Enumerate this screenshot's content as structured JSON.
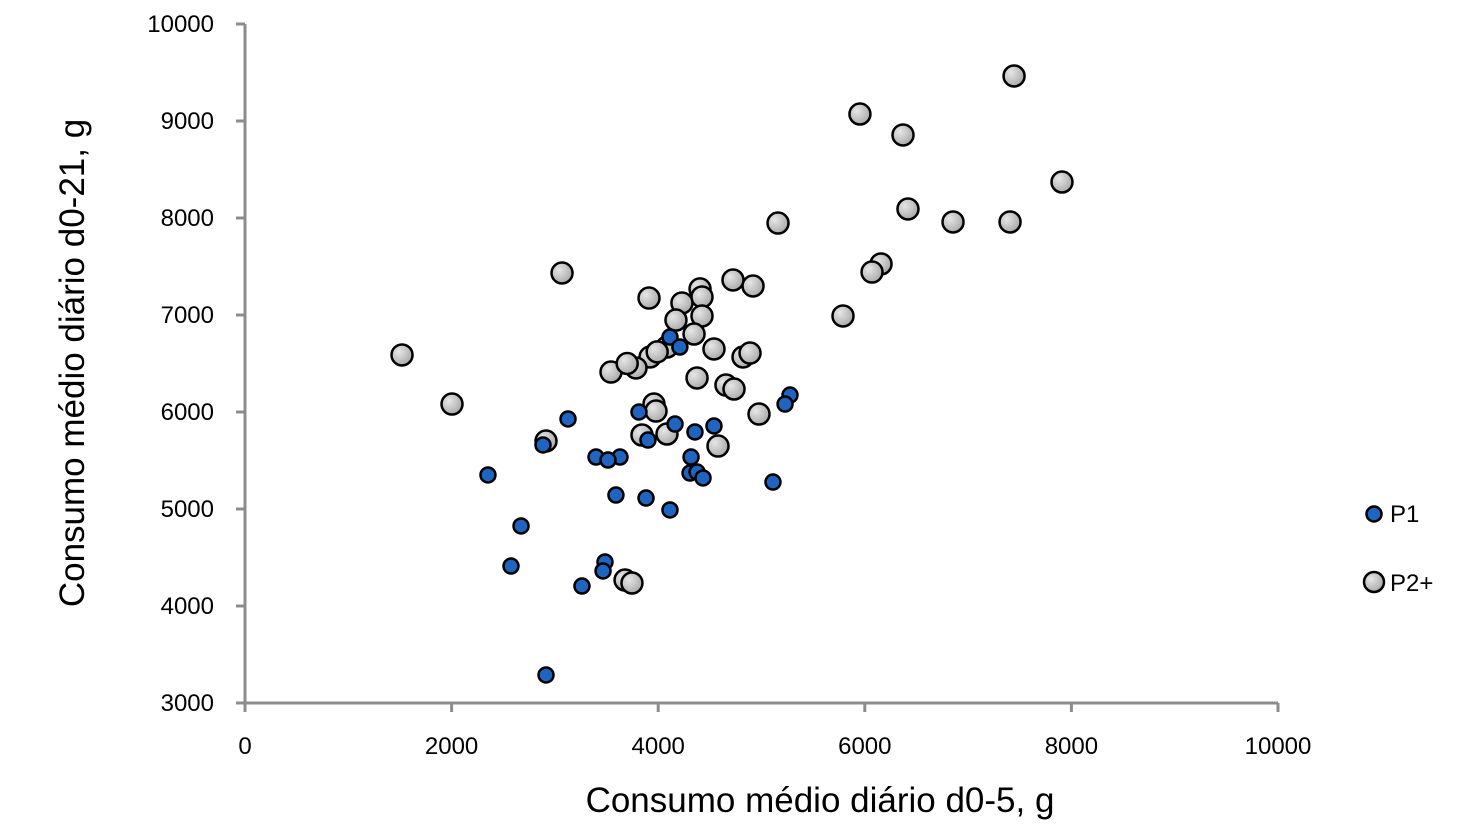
{
  "chart_data": {
    "type": "scatter",
    "title": "",
    "xlabel": "Consumo médio diário d0-5, g",
    "ylabel": "Consumo médio diário d0-21, g",
    "xlim": [
      0,
      10000
    ],
    "ylim": [
      3000,
      10000
    ],
    "xticks": [
      0,
      2000,
      4000,
      6000,
      8000,
      10000
    ],
    "yticks": [
      3000,
      4000,
      5000,
      6000,
      7000,
      8000,
      9000,
      10000
    ],
    "grid": false,
    "legend_position": "right",
    "series": [
      {
        "name": "P1",
        "color": "#1f64c0",
        "marker_size": "small",
        "points": [
          [
            5276,
            6175
          ],
          [
            5228,
            6082
          ],
          [
            3127,
            5928
          ],
          [
            3814,
            6000
          ],
          [
            4163,
            5876
          ],
          [
            4540,
            5856
          ],
          [
            4356,
            5794
          ],
          [
            3901,
            5711
          ],
          [
            2885,
            5660
          ],
          [
            3398,
            5536
          ],
          [
            3630,
            5536
          ],
          [
            3514,
            5505
          ],
          [
            4318,
            5536
          ],
          [
            4308,
            5371
          ],
          [
            4376,
            5381
          ],
          [
            4434,
            5320
          ],
          [
            2352,
            5351
          ],
          [
            5111,
            5278
          ],
          [
            3591,
            5144
          ],
          [
            3882,
            5113
          ],
          [
            4114,
            4990
          ],
          [
            2672,
            4825
          ],
          [
            3485,
            4454
          ],
          [
            3466,
            4361
          ],
          [
            2575,
            4412
          ],
          [
            3262,
            4206
          ],
          [
            2914,
            3289
          ],
          [
            4114,
            6773
          ],
          [
            4210,
            6670
          ]
        ]
      },
      {
        "name": "P2+",
        "color": "#c8c8c8",
        "marker_size": "large",
        "points": [
          [
            7445,
            9464
          ],
          [
            5953,
            9072
          ],
          [
            6370,
            8856
          ],
          [
            7909,
            8371
          ],
          [
            6418,
            8093
          ],
          [
            6854,
            7959
          ],
          [
            7406,
            7959
          ],
          [
            5160,
            7948
          ],
          [
            6157,
            7526
          ],
          [
            6070,
            7443
          ],
          [
            3069,
            7433
          ],
          [
            4724,
            7361
          ],
          [
            4918,
            7299
          ],
          [
            4405,
            7269
          ],
          [
            3911,
            7175
          ],
          [
            4424,
            7186
          ],
          [
            4230,
            7124
          ],
          [
            4424,
            6990
          ],
          [
            4172,
            6948
          ],
          [
            4347,
            6804
          ],
          [
            5789,
            6990
          ],
          [
            4085,
            6670
          ],
          [
            3921,
            6567
          ],
          [
            3785,
            6454
          ],
          [
            3543,
            6412
          ],
          [
            4540,
            6650
          ],
          [
            4821,
            6567
          ],
          [
            4889,
            6608
          ],
          [
            4376,
            6351
          ],
          [
            4656,
            6278
          ],
          [
            4734,
            6237
          ],
          [
            3959,
            6082
          ],
          [
            3979,
            6010
          ],
          [
            4976,
            5979
          ],
          [
            3843,
            5763
          ],
          [
            4085,
            5773
          ],
          [
            4579,
            5649
          ],
          [
            1520,
            6588
          ],
          [
            2004,
            6082
          ],
          [
            2914,
            5701
          ],
          [
            3679,
            4268
          ],
          [
            3746,
            4237
          ],
          [
            3700,
            6500
          ],
          [
            3990,
            6620
          ]
        ]
      }
    ]
  },
  "legend": {
    "items": [
      {
        "label": "P1"
      },
      {
        "label": "P2+"
      }
    ]
  }
}
